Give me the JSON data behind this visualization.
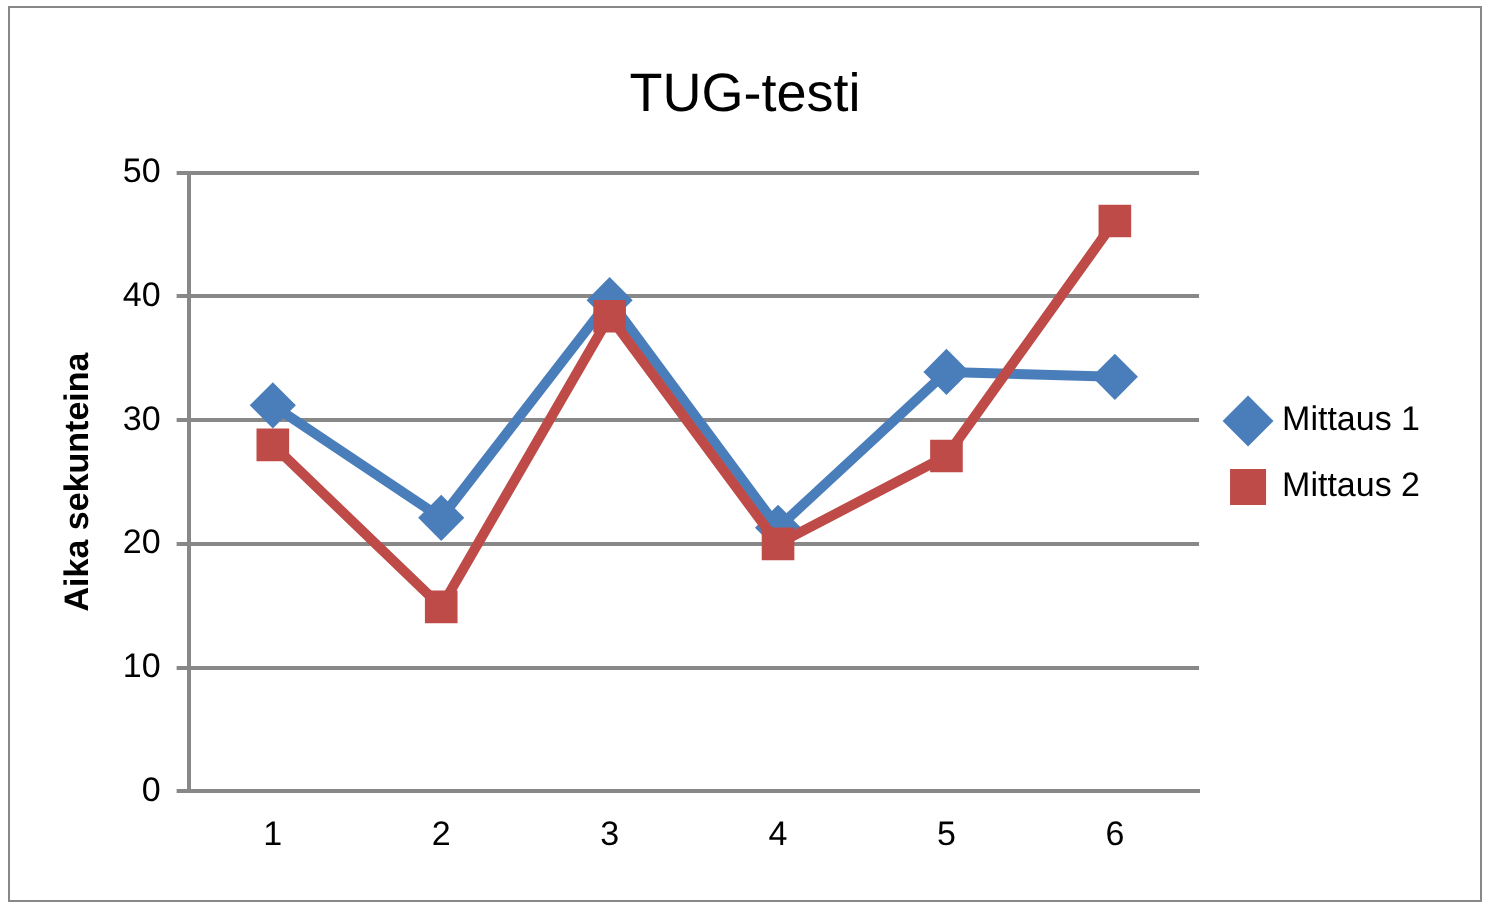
{
  "chart_data": {
    "type": "line",
    "title": "TUG-testi",
    "ylabel": "Aika sekunteina",
    "categories": [
      "1",
      "2",
      "3",
      "4",
      "5",
      "6"
    ],
    "series": [
      {
        "name": "Mittaus 1",
        "color": "#4a7ebb",
        "values": [
          31.2,
          22.1,
          39.7,
          21.3,
          33.9,
          33.5
        ],
        "marker": "diamond"
      },
      {
        "name": "Mittaus 2",
        "color": "#be4b48",
        "values": [
          28,
          14.9,
          38.4,
          20,
          27.1,
          46.1
        ],
        "marker": "square"
      }
    ],
    "ylim": [
      0,
      50
    ],
    "yticks": [
      0,
      10,
      20,
      30,
      40,
      50
    ],
    "grid": "y",
    "legend": "right"
  }
}
